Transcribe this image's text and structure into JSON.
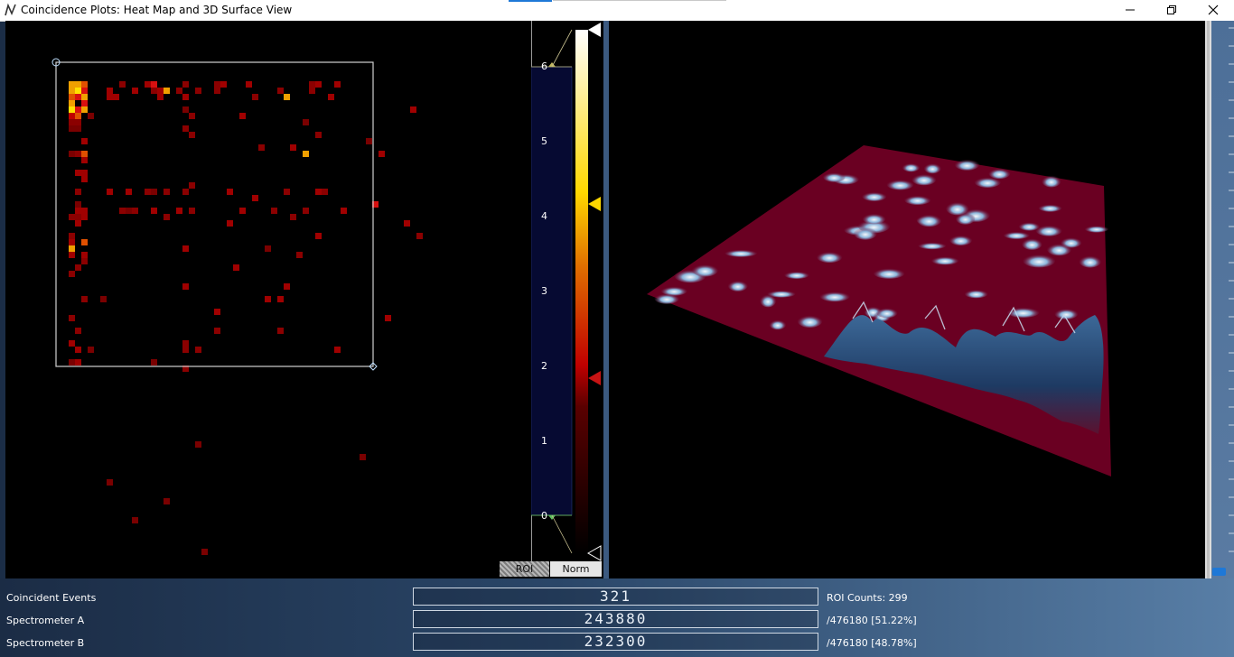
{
  "window": {
    "title": "Coincidence Plots: Heat Map and 3D Surface View"
  },
  "scale": {
    "ticks": [
      "6",
      "5",
      "4",
      "3",
      "2",
      "1",
      "0"
    ],
    "tab_roi": "ROI",
    "tab_norm": "Norm",
    "colors": {
      "dark": "#2a0000",
      "red": "#c00000",
      "orange": "#e07000",
      "yellow": "#ffd800",
      "white": "#ffffff",
      "fill": "#060a32"
    }
  },
  "stats": {
    "coincident": {
      "label": "Coincident Events",
      "value": "321",
      "info": "ROI Counts: 299"
    },
    "spec_a": {
      "label": "Spectrometer A",
      "value": "243880",
      "info": "/476180 [51.22%]"
    },
    "spec_b": {
      "label": "Spectrometer B",
      "value": "232300",
      "info": "/476180 [48.78%]"
    }
  },
  "icons": [
    "app-logo-icon",
    "minimize-icon",
    "restore-icon",
    "close-icon"
  ]
}
